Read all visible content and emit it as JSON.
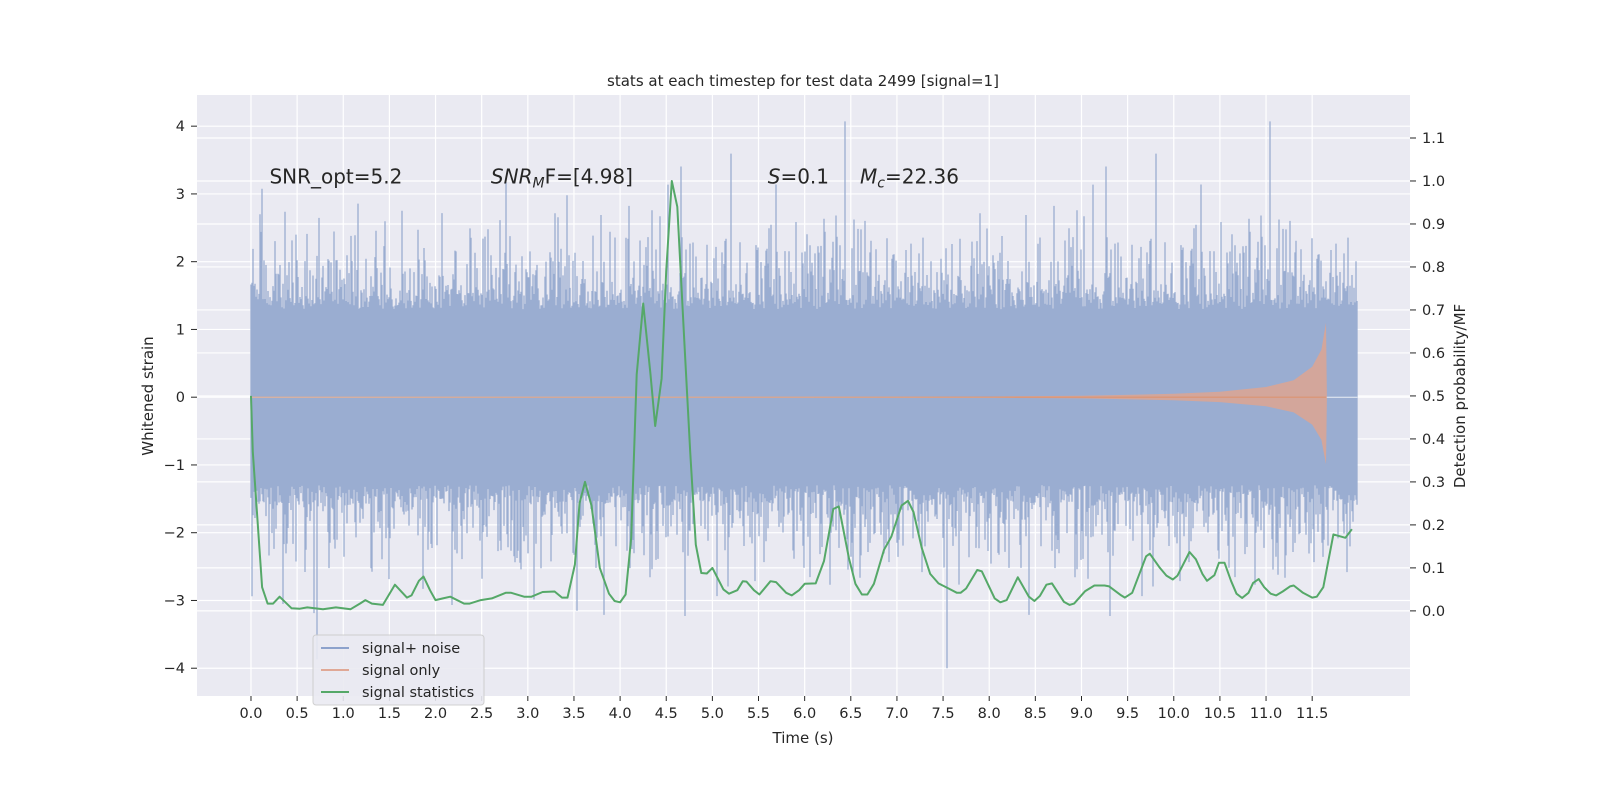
{
  "chart_data": {
    "type": "line",
    "title": "stats at each timestep for test data 2499 [signal=1]",
    "xlabel": "Time (s)",
    "ylabel": "Whitened strain",
    "ylabel_right": "Detection probability/MF",
    "xlim": [
      -0.585,
      12.56
    ],
    "ylim": [
      -4.41,
      4.46
    ],
    "ylim_right": [
      -0.198,
      1.2
    ],
    "grid": true,
    "legend_placement": "lower-left",
    "x_ticks": [
      "0.0",
      "0.5",
      "1.0",
      "1.5",
      "2.0",
      "2.5",
      "3.0",
      "3.5",
      "4.0",
      "4.5",
      "5.0",
      "5.5",
      "6.0",
      "6.5",
      "7.0",
      "7.5",
      "8.0",
      "8.5",
      "9.0",
      "9.5",
      "10.0",
      "10.5",
      "11.0",
      "11.5"
    ],
    "y_ticks": [
      "4",
      "3",
      "2",
      "1",
      "0",
      "−1",
      "−2",
      "−3",
      "−4"
    ],
    "y_tick_values": [
      4,
      3,
      2,
      1,
      0,
      -1,
      -2,
      -3,
      -4
    ],
    "y_right_ticks": [
      "1.1",
      "1.0",
      "0.9",
      "0.8",
      "0.7",
      "0.6",
      "0.5",
      "0.4",
      "0.3",
      "0.2",
      "0.1",
      "0.0"
    ],
    "y_right_tick_values": [
      1.1,
      1.0,
      0.9,
      0.8,
      0.7,
      0.6,
      0.5,
      0.4,
      0.3,
      0.2,
      0.1,
      0.0
    ],
    "annotations": [
      {
        "text": "SNR_opt=5.2",
        "x": 0.2,
        "y": 3.2
      },
      {
        "text_main": "SNR",
        "text_sub": "M",
        "text_rest": "F=[4.98]",
        "x": 2.6,
        "y": 3.2
      },
      {
        "text_main": "S",
        "text_rest": "=0.1",
        "x": 5.6,
        "y": 3.2
      },
      {
        "text_main": "M",
        "text_sub": "c",
        "text_rest": "=22.36",
        "x": 6.6,
        "y": 3.2
      }
    ],
    "series": [
      {
        "name": "signal+ noise",
        "axis": "left",
        "color": "#4c72b0",
        "kind": "whitened noise, t from 0 to 12 s, std ≈ 1, peaks ≈ ±4",
        "t_range": [
          0,
          11.99
        ],
        "std": 0.95
      },
      {
        "name": "signal only",
        "axis": "left",
        "color": "#dd8452",
        "kind": "chirp envelope (amplitude vs time)",
        "t": [
          0,
          6.0,
          8.0,
          9.0,
          10.0,
          10.5,
          11.0,
          11.3,
          11.5,
          11.6,
          11.65,
          11.66
        ],
        "amplitude": [
          0.0,
          0.005,
          0.01,
          0.02,
          0.05,
          0.08,
          0.15,
          0.25,
          0.45,
          0.7,
          1.1,
          0.0
        ]
      },
      {
        "name": "signal statistics",
        "axis": "right",
        "color": "#55a868",
        "t": [
          0,
          0.02,
          0.12,
          0.18,
          0.24,
          0.31,
          0.44,
          0.53,
          0.61,
          0.78,
          0.92,
          1.08,
          1.18,
          1.24,
          1.31,
          1.43,
          1.56,
          1.69,
          1.74,
          1.82,
          1.87,
          1.94,
          2.0,
          2.08,
          2.16,
          2.31,
          2.37,
          2.49,
          2.61,
          2.76,
          2.82,
          2.96,
          3.04,
          3.16,
          3.29,
          3.37,
          3.43,
          3.51,
          3.56,
          3.62,
          3.69,
          3.78,
          3.88,
          3.94,
          4.0,
          4.06,
          4.12,
          4.18,
          4.25,
          4.33,
          4.38,
          4.45,
          4.5,
          4.56,
          4.62,
          4.7,
          4.76,
          4.82,
          4.88,
          4.94,
          5.0,
          5.12,
          5.18,
          5.27,
          5.33,
          5.37,
          5.45,
          5.51,
          5.63,
          5.69,
          5.8,
          5.86,
          5.94,
          6.0,
          6.12,
          6.21,
          6.31,
          6.37,
          6.48,
          6.55,
          6.62,
          6.68,
          6.75,
          6.86,
          6.94,
          7.05,
          7.12,
          7.18,
          7.27,
          7.36,
          7.45,
          7.56,
          7.65,
          7.69,
          7.75,
          7.87,
          7.92,
          8.06,
          8.12,
          8.19,
          8.31,
          8.43,
          8.49,
          8.55,
          8.62,
          8.68,
          8.81,
          8.87,
          8.92,
          9.04,
          9.14,
          9.25,
          9.3,
          9.43,
          9.47,
          9.55,
          9.7,
          9.74,
          9.85,
          9.92,
          9.99,
          10.04,
          10.17,
          10.24,
          10.31,
          10.36,
          10.44,
          10.49,
          10.55,
          10.62,
          10.68,
          10.74,
          10.81,
          10.86,
          10.92,
          10.98,
          11.05,
          11.11,
          11.18,
          11.26,
          11.3,
          11.4,
          11.5,
          11.55,
          11.62,
          11.73,
          11.86,
          11.93
        ],
        "values": [
          0.5,
          0.37,
          0.055,
          0.017,
          0.017,
          0.033,
          0.006,
          0.005,
          0.008,
          0.004,
          0.008,
          0.004,
          0.017,
          0.025,
          0.017,
          0.014,
          0.061,
          0.031,
          0.036,
          0.07,
          0.08,
          0.048,
          0.025,
          0.029,
          0.033,
          0.017,
          0.017,
          0.025,
          0.029,
          0.042,
          0.042,
          0.033,
          0.033,
          0.044,
          0.045,
          0.031,
          0.031,
          0.108,
          0.25,
          0.3,
          0.245,
          0.1,
          0.04,
          0.023,
          0.02,
          0.038,
          0.17,
          0.55,
          0.715,
          0.55,
          0.43,
          0.54,
          0.79,
          1.0,
          0.94,
          0.61,
          0.37,
          0.154,
          0.088,
          0.087,
          0.1,
          0.05,
          0.04,
          0.048,
          0.069,
          0.068,
          0.048,
          0.038,
          0.069,
          0.067,
          0.042,
          0.036,
          0.048,
          0.063,
          0.064,
          0.116,
          0.237,
          0.243,
          0.123,
          0.063,
          0.038,
          0.038,
          0.063,
          0.142,
          0.173,
          0.245,
          0.256,
          0.23,
          0.146,
          0.086,
          0.064,
          0.052,
          0.042,
          0.042,
          0.052,
          0.095,
          0.092,
          0.029,
          0.02,
          0.025,
          0.078,
          0.033,
          0.023,
          0.035,
          0.061,
          0.064,
          0.021,
          0.014,
          0.017,
          0.046,
          0.059,
          0.059,
          0.057,
          0.036,
          0.031,
          0.042,
          0.127,
          0.133,
          0.1,
          0.082,
          0.073,
          0.082,
          0.137,
          0.12,
          0.086,
          0.07,
          0.083,
          0.112,
          0.112,
          0.07,
          0.04,
          0.03,
          0.042,
          0.065,
          0.074,
          0.055,
          0.04,
          0.036,
          0.045,
          0.057,
          0.059,
          0.042,
          0.031,
          0.033,
          0.055,
          0.178,
          0.17,
          0.19
        ]
      }
    ],
    "legend": [
      "signal+ noise",
      "signal only",
      "signal statistics"
    ],
    "colors": {
      "background": "#eaeaf2",
      "grid": "#ffffff",
      "noise_fill": "#9aadd1",
      "signal_fill": "#d9a595"
    }
  }
}
